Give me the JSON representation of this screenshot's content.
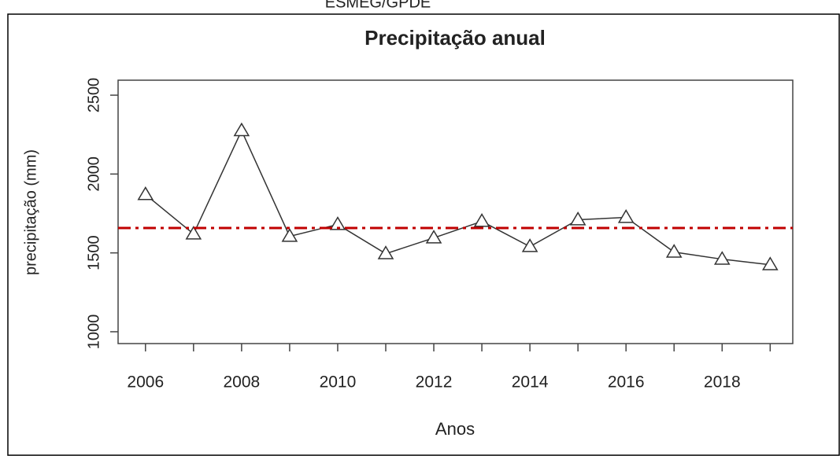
{
  "header": "ESMEG/GPDE",
  "chart_data": {
    "type": "line",
    "title": "Precipitação anual",
    "x_label": "Anos",
    "y_label": "precipitação (mm)",
    "x": [
      2006,
      2007,
      2008,
      2009,
      2010,
      2011,
      2012,
      2013,
      2014,
      2015,
      2016,
      2017,
      2018,
      2019
    ],
    "series": [
      {
        "color": "#333333",
        "marker": "triangle",
        "values": [
          1870,
          1620,
          2275,
          1605,
          1680,
          1495,
          1595,
          1700,
          1540,
          1710,
          1725,
          1505,
          1460,
          1425
        ]
      }
    ],
    "hline": {
      "value": 1658,
      "color": "#c00000",
      "dash": "dashdot"
    },
    "xlim": [
      2005.43,
      2019.47
    ],
    "ylim": [
      925,
      2595
    ],
    "xticks": [
      2006,
      2008,
      2010,
      2012,
      2014,
      2016,
      2018
    ],
    "xminorticks": [
      2007,
      2009,
      2011,
      2013,
      2015,
      2017,
      2019
    ],
    "yticks": [
      1000,
      1500,
      2000,
      2500
    ]
  }
}
